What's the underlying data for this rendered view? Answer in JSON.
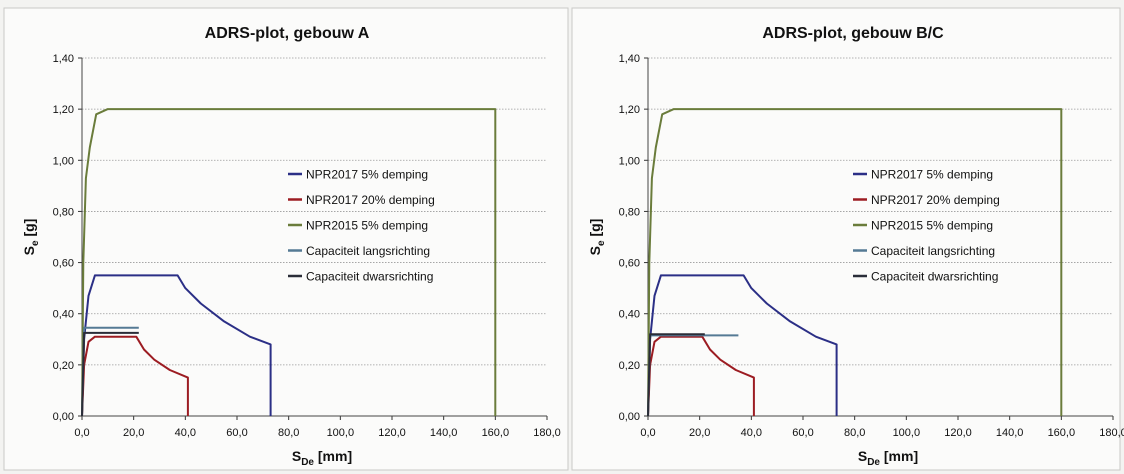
{
  "chart_data": [
    {
      "type": "line",
      "title": "ADRS-plot, gebouw A",
      "ylabel": {
        "main": "S",
        "sub": "e",
        "unit": " [g]"
      },
      "xlabel": {
        "main": "S",
        "sub": "De",
        "unit": " [mm]"
      },
      "xlim": [
        0,
        180
      ],
      "ylim": [
        0,
        1.4
      ],
      "x_ticks": [
        "0,0",
        "20,0",
        "40,0",
        "60,0",
        "80,0",
        "100,0",
        "120,0",
        "140,0",
        "160,0",
        "180,0"
      ],
      "y_ticks": [
        "0,00",
        "0,20",
        "0,40",
        "0,60",
        "0,80",
        "1,00",
        "1,20",
        "1,40"
      ],
      "grid": true,
      "legend_position": "right",
      "series": [
        {
          "name": "NPR2017 5% demping",
          "color": "#2b2f86",
          "x": [
            0,
            0.8,
            2.5,
            5,
            37,
            40,
            46,
            55,
            65,
            73,
            73
          ],
          "y": [
            0,
            0.3,
            0.47,
            0.55,
            0.55,
            0.5,
            0.44,
            0.37,
            0.31,
            0.28,
            0
          ]
        },
        {
          "name": "NPR2017 20% demping",
          "color": "#9c1c22",
          "x": [
            0,
            0.8,
            2.5,
            5,
            21,
            24,
            28,
            34,
            41,
            41
          ],
          "y": [
            0,
            0.2,
            0.29,
            0.31,
            0.31,
            0.26,
            0.22,
            0.18,
            0.15,
            0
          ]
        },
        {
          "name": "NPR2015 5% demping",
          "color": "#6a7c3b",
          "x": [
            0,
            0.5,
            1.5,
            3,
            5.5,
            10,
            160,
            160
          ],
          "y": [
            0,
            0.6,
            0.93,
            1.05,
            1.18,
            1.2,
            1.2,
            0
          ]
        },
        {
          "name": "Capaciteit langsrichting",
          "color": "#557a94",
          "x": [
            0,
            0.8,
            22
          ],
          "y": [
            0,
            0.345,
            0.345
          ]
        },
        {
          "name": "Capaciteit dwarsrichting",
          "color": "#2a2d38",
          "x": [
            0,
            0.8,
            22
          ],
          "y": [
            0,
            0.325,
            0.325
          ]
        }
      ]
    },
    {
      "type": "line",
      "title": "ADRS-plot, gebouw B/C",
      "ylabel": {
        "main": "S",
        "sub": "e",
        "unit": " [g]"
      },
      "xlabel": {
        "main": "S",
        "sub": "De",
        "unit": " [mm]"
      },
      "xlim": [
        0,
        180
      ],
      "ylim": [
        0,
        1.4
      ],
      "x_ticks": [
        "0,0",
        "20,0",
        "40,0",
        "60,0",
        "80,0",
        "100,0",
        "120,0",
        "140,0",
        "160,0",
        "180,0"
      ],
      "y_ticks": [
        "0,00",
        "0,20",
        "0,40",
        "0,60",
        "0,80",
        "1,00",
        "1,20",
        "1,40"
      ],
      "grid": true,
      "legend_position": "right",
      "series": [
        {
          "name": "NPR2017 5% demping",
          "color": "#2b2f86",
          "x": [
            0,
            0.8,
            2.5,
            5,
            37,
            40,
            46,
            55,
            65,
            73,
            73
          ],
          "y": [
            0,
            0.3,
            0.47,
            0.55,
            0.55,
            0.5,
            0.44,
            0.37,
            0.31,
            0.28,
            0
          ]
        },
        {
          "name": "NPR2017 20% demping",
          "color": "#9c1c22",
          "x": [
            0,
            0.8,
            2.5,
            5,
            21,
            24,
            28,
            34,
            41,
            41
          ],
          "y": [
            0,
            0.2,
            0.29,
            0.31,
            0.31,
            0.26,
            0.22,
            0.18,
            0.15,
            0
          ]
        },
        {
          "name": "NPR2015 5% demping",
          "color": "#6a7c3b",
          "x": [
            0,
            0.5,
            1.5,
            3,
            5.5,
            10,
            160,
            160
          ],
          "y": [
            0,
            0.6,
            0.93,
            1.05,
            1.18,
            1.2,
            1.2,
            0
          ]
        },
        {
          "name": "Capaciteit langsrichting",
          "color": "#557a94",
          "x": [
            0,
            0.8,
            35
          ],
          "y": [
            0,
            0.315,
            0.315
          ]
        },
        {
          "name": "Capaciteit dwarsrichting",
          "color": "#2a2d38",
          "x": [
            0,
            0.8,
            22
          ],
          "y": [
            0,
            0.32,
            0.32
          ]
        }
      ]
    }
  ]
}
